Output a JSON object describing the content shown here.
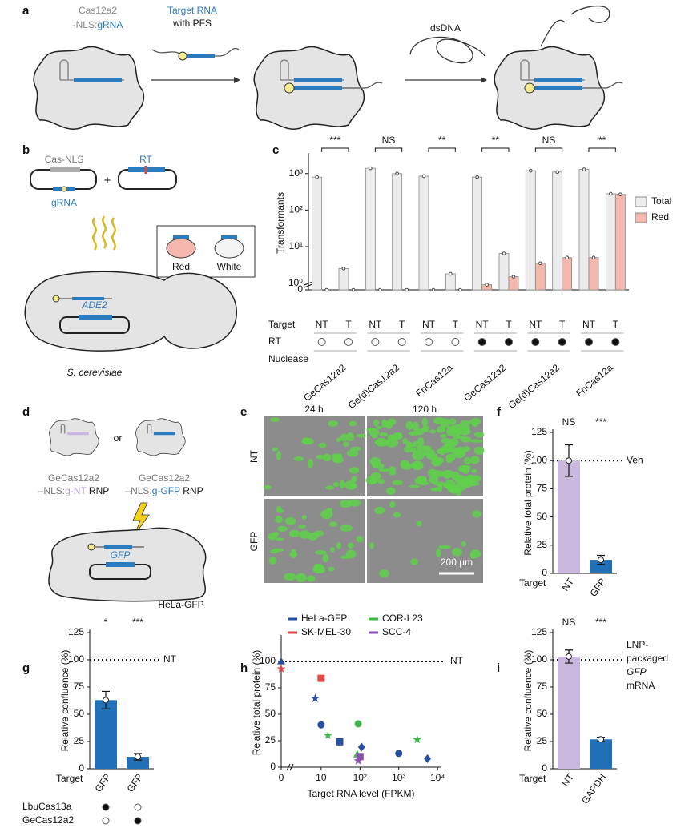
{
  "panel_a": {
    "letter": "a",
    "protein_name": "Cas12a2",
    "nls": "-NLS:",
    "guide": "gRNA",
    "target_rna": "Target RNA",
    "with_pfs": "with PFS",
    "dsdna": "dsDNA"
  },
  "panel_b": {
    "letter": "b",
    "cas_nls": "Cas-NLS",
    "guide": "gRNA",
    "plus": "+",
    "rt": "RT",
    "red": "Red",
    "white": "White",
    "gene": "ADE2",
    "organism": "S. cerevisiae"
  },
  "panel_d": {
    "letter": "d",
    "left_name": "GeCas12a2",
    "left_nls": "–NLS:",
    "left_guide": "g-NT",
    "left_rnp": " RNP",
    "or": "or",
    "right_name": "GeCas12a2",
    "right_nls": "–NLS:",
    "right_guide": "g-GFP",
    "right_rnp": " RNP",
    "gene": "GFP",
    "cell_line": "HeLa-GFP"
  },
  "panel_e": {
    "letter": "e",
    "col1": "24 h",
    "col2": "120 h",
    "row1": "NT",
    "row2": "GFP",
    "scale_bar": "200 µm"
  },
  "chart_data": [
    {
      "type": "bar",
      "letter": "c",
      "ylabel": "Transformants",
      "y_log": true,
      "ylim": [
        0.8,
        3000
      ],
      "yticks": [
        0,
        {
          "value": 1,
          "label": "10⁰"
        },
        {
          "value": 10,
          "label": "10¹"
        },
        {
          "value": 100,
          "label": "10²"
        },
        {
          "value": 1000,
          "label": "10³"
        }
      ],
      "categories": [
        "NT",
        "T",
        "NT",
        "T",
        "NT",
        "T",
        "NT",
        "T",
        "NT",
        "T",
        "NT",
        "T"
      ],
      "series": [
        {
          "name": "Total",
          "color": "#ececec",
          "values": [
            800,
            2.5,
            1400,
            1000,
            850,
            1.8,
            800,
            6.5,
            1200,
            1100,
            1300,
            280
          ]
        },
        {
          "name": "Red",
          "color": "#f4b8ae",
          "values": [
            0,
            0,
            0,
            0,
            0,
            0,
            0.9,
            1.5,
            3.5,
            5,
            5,
            270
          ]
        }
      ],
      "row_labels": [
        "Target",
        "RT",
        "Nuclease"
      ],
      "rt_present": [
        false,
        false,
        false,
        false,
        false,
        false,
        true,
        true,
        true,
        true,
        true,
        true
      ],
      "nucleases": [
        "GeCas12a2",
        "Ge(d)Cas12a2",
        "FnCas12a",
        "GeCas12a2",
        "Ge(d)Cas12a2",
        "FnCas12a"
      ],
      "significance": [
        "***",
        "NS",
        "**",
        "**",
        "NS",
        "**"
      ],
      "legend": "right"
    },
    {
      "type": "bar",
      "letter": "f",
      "ylabel": "Relative total protein (%)",
      "categories": [
        "NT",
        "GFP"
      ],
      "values": [
        100,
        12
      ],
      "errors": [
        14,
        4
      ],
      "colors": [
        "#cbb8df",
        "#2271b8"
      ],
      "ylim": [
        0,
        125
      ],
      "yticks": [
        0,
        25,
        50,
        75,
        100,
        125
      ],
      "significance": [
        "NS",
        "***"
      ],
      "reference": {
        "value": 100,
        "label": "Veh"
      },
      "target_label": "Target"
    },
    {
      "type": "bar",
      "letter": "g",
      "ylabel": "Relative confluence (%)",
      "categories": [
        "GFP",
        "GFP"
      ],
      "values": [
        63,
        11
      ],
      "errors": [
        8,
        3
      ],
      "colors": [
        "#2271b8",
        "#2271b8"
      ],
      "ylim": [
        0,
        125
      ],
      "yticks": [
        0,
        25,
        50,
        75,
        100,
        125
      ],
      "significance": [
        "*",
        "***"
      ],
      "reference": {
        "value": 100,
        "label": "NT"
      },
      "target_label": "Target",
      "nucleases": [
        {
          "name": "LbuCas13a",
          "present": [
            true,
            false
          ]
        },
        {
          "name": "GeCas12a2",
          "present": [
            false,
            true
          ]
        }
      ]
    },
    {
      "type": "scatter",
      "letter": "h",
      "ylabel": "Relative total protein (%)",
      "xlabel": "Target RNA level (FPKM)",
      "x_log": true,
      "xlim": [
        2,
        12000
      ],
      "xticks": [
        0,
        10,
        {
          "value": 100,
          "label": "10²"
        },
        {
          "value": 1000,
          "label": "10³"
        },
        {
          "value": 10000,
          "label": "10⁴"
        }
      ],
      "ylim": [
        0,
        122
      ],
      "yticks": [
        0,
        25,
        50,
        75,
        100
      ],
      "reference": {
        "value": 100,
        "label": "NT"
      },
      "series": [
        {
          "name": "HeLa-GFP",
          "color": "#2b4fa0",
          "x": [
            0,
            7,
            10,
            30,
            110,
            1000,
            5500
          ],
          "values": [
            100,
            65,
            40,
            24,
            19,
            13,
            8
          ],
          "markers": [
            "triangle",
            "star",
            "circle",
            "square",
            "diamond",
            "circle",
            "diamond"
          ]
        },
        {
          "name": "SK-MEL-30",
          "color": "#e04848",
          "x": [
            0,
            10
          ],
          "values": [
            93,
            84
          ],
          "markers": [
            "star",
            "square"
          ]
        },
        {
          "name": "COR-L23",
          "color": "#3fb54a",
          "x": [
            15,
            90,
            85,
            3000
          ],
          "values": [
            30,
            41,
            12,
            26
          ],
          "markers": [
            "star",
            "circle",
            "triangle",
            "star"
          ]
        },
        {
          "name": "SCC-4",
          "color": "#8a4fb0",
          "x": [
            90,
            100
          ],
          "values": [
            6,
            10
          ],
          "markers": [
            "star",
            "square"
          ]
        }
      ]
    },
    {
      "type": "bar",
      "letter": "i",
      "ylabel": "Relative confluence (%)",
      "categories": [
        "NT",
        "GAPDH"
      ],
      "values": [
        103,
        27
      ],
      "errors": [
        6,
        2
      ],
      "colors": [
        "#cbb8df",
        "#2271b8"
      ],
      "ylim": [
        0,
        125
      ],
      "yticks": [
        0,
        25,
        50,
        75,
        100,
        125
      ],
      "significance": [
        "NS",
        "***"
      ],
      "reference": {
        "value": 100,
        "label_lines": [
          "LNP-",
          "packaged",
          "GFP",
          "mRNA"
        ]
      },
      "target_label": "Target"
    }
  ]
}
